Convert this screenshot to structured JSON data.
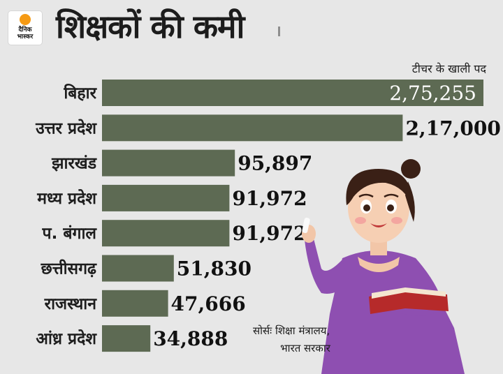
{
  "brand": {
    "name": "दैनिक भास्कर",
    "line1": "दैनिक",
    "line2": "भास्कर"
  },
  "title": "शिक्षकों की कमी",
  "source_text": {
    "line1": "सोर्सः शिक्षा मंत्रालय,",
    "line2": "भारत सरकार"
  },
  "colors": {
    "bar": "#5d6a53",
    "background": "#e7e7e7",
    "logo_sun": "#f59a14"
  },
  "chart_data": {
    "type": "bar",
    "orientation": "horizontal",
    "title": "शिक्षकों की कमी",
    "value_label": "टीचर के खाली पद",
    "categories": [
      "बिहार",
      "उत्तर प्रदेश",
      "झारखंड",
      "मध्य प्रदेश",
      "प. बंगाल",
      "छत्तीसगढ़",
      "राजस्थान",
      "आंध्र प्रदेश"
    ],
    "values": [
      275255,
      217000,
      95897,
      91972,
      91972,
      51830,
      47666,
      34888
    ],
    "value_labels": [
      "2,75,255",
      "2,17,000",
      "95,897",
      "91,972",
      "91,972",
      "51,830",
      "47,666",
      "34,888"
    ],
    "xlim": [
      0,
      275255
    ],
    "grid": false,
    "legend": "none"
  }
}
